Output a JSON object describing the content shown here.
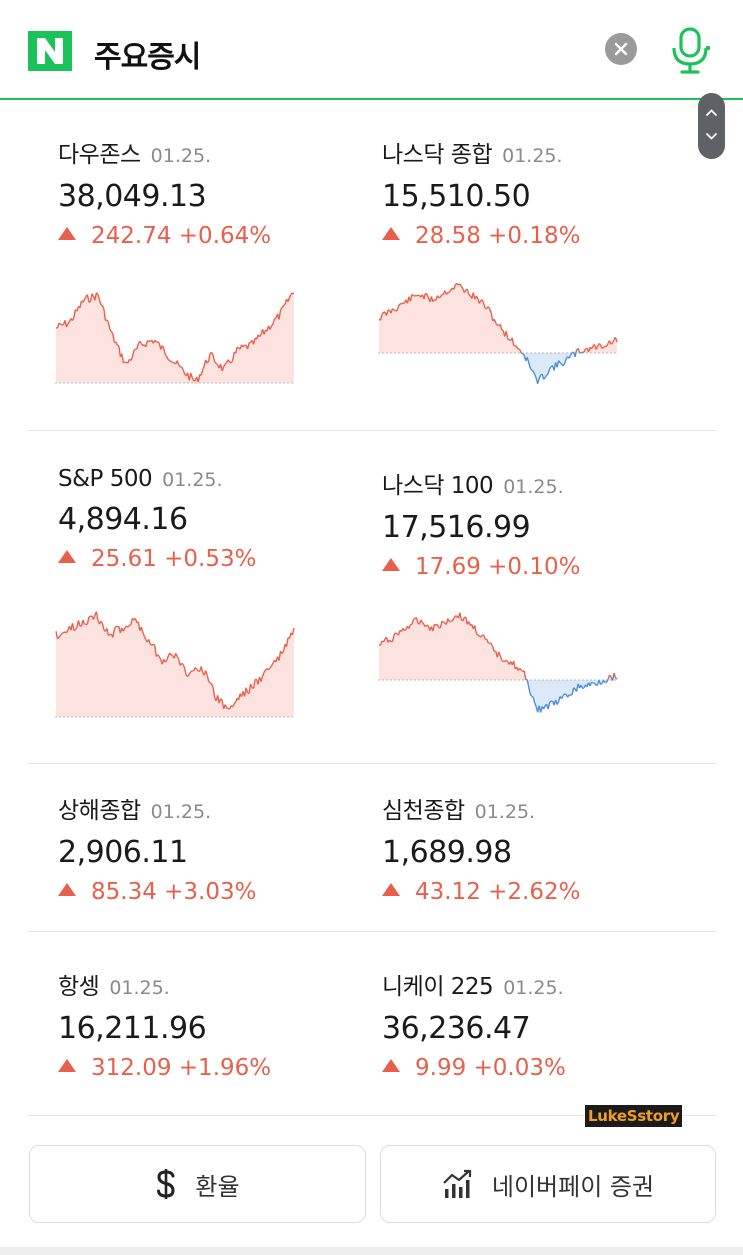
{
  "header": {
    "title": "주요증시",
    "logo_letter": "N",
    "brand_color": "#19c35a"
  },
  "indices": [
    {
      "name": "다우존스",
      "date": "01.25.",
      "value": "38,049.13",
      "change": "242.74 +0.64%",
      "direction": "up"
    },
    {
      "name": "나스닥 종합",
      "date": "01.25.",
      "value": "15,510.50",
      "change": "28.58 +0.18%",
      "direction": "up"
    },
    {
      "name": "S&P 500",
      "date": "01.25.",
      "value": "4,894.16",
      "change": "25.61 +0.53%",
      "direction": "up"
    },
    {
      "name": "나스닥 100",
      "date": "01.25.",
      "value": "17,516.99",
      "change": "17.69 +0.10%",
      "direction": "up"
    },
    {
      "name": "상해종합",
      "date": "01.25.",
      "value": "2,906.11",
      "change": "85.34 +3.03%",
      "direction": "up"
    },
    {
      "name": "심천종합",
      "date": "01.25.",
      "value": "1,689.98",
      "change": "43.12 +2.62%",
      "direction": "up"
    },
    {
      "name": "항셍",
      "date": "01.25.",
      "value": "16,211.96",
      "change": "312.09 +1.96%",
      "direction": "up"
    },
    {
      "name": "니케이 225",
      "date": "01.25.",
      "value": "36,236.47",
      "change": "9.99 +0.03%",
      "direction": "up"
    }
  ],
  "buttons": {
    "exchange_label": "환율",
    "exchange_icon": "dollar-icon",
    "securities_label": "네이버페이 증권",
    "securities_icon": "stock-chart-icon"
  },
  "watermark": "LukeSstory",
  "colors": {
    "up": "#e8604c",
    "down": "#4a90d9",
    "up_fill": "#fde3e0",
    "down_fill": "#dbe9f8"
  }
}
